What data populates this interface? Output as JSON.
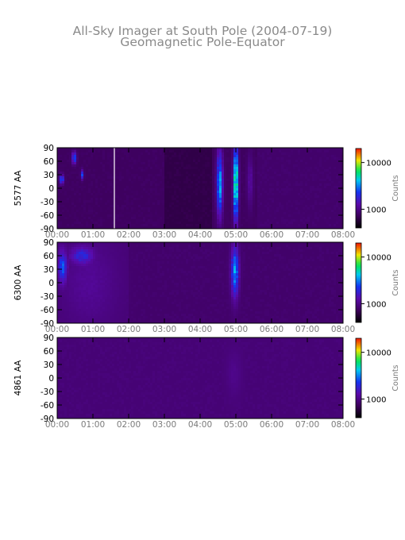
{
  "title": "All-Sky Imager at South Pole (2004-07-19)",
  "subtitle": "Geomagnetic Pole-Equator",
  "chart_data": [
    {
      "type": "heatmap",
      "ylabel": "5577 AA",
      "x_ticks": [
        "00:00",
        "01:00",
        "02:00",
        "03:00",
        "04:00",
        "05:00",
        "06:00",
        "07:00",
        "08:00"
      ],
      "xlim": [
        0,
        8
      ],
      "y_ticks": [
        90,
        60,
        30,
        0,
        -30,
        -60,
        -90
      ],
      "ylim": [
        -90,
        90
      ],
      "colorbar": {
        "label": "Counts",
        "scale": "log",
        "ticks": [
          "10000",
          "1000"
        ],
        "tick_values": [
          10000,
          1000
        ]
      },
      "background": 0.16,
      "gaps": [
        1.6
      ],
      "features": [
        {
          "t": [
            4.45,
            4.65
          ],
          "lat": [
            -60,
            80
          ],
          "peak": 0.58
        },
        {
          "t": [
            4.92,
            5.08
          ],
          "lat": [
            -70,
            90
          ],
          "peak": 0.75
        },
        {
          "t": [
            0.4,
            0.55
          ],
          "lat": [
            55,
            80
          ],
          "peak": 0.5
        },
        {
          "t": [
            0.05,
            0.2
          ],
          "lat": [
            10,
            30
          ],
          "peak": 0.5
        },
        {
          "t": [
            0.65,
            0.75
          ],
          "lat": [
            20,
            40
          ],
          "peak": 0.45
        },
        {
          "t": [
            5.3,
            5.5
          ],
          "lat": [
            -40,
            70
          ],
          "peak": 0.28
        }
      ],
      "dim": [
        {
          "t": [
            3.0,
            4.3
          ],
          "value": 0.12
        },
        {
          "t": [
            5.6,
            7.9
          ],
          "value": 0.18
        }
      ]
    },
    {
      "type": "heatmap",
      "ylabel": "6300 AA",
      "x_ticks": [
        "00:00",
        "01:00",
        "02:00",
        "03:00",
        "04:00",
        "05:00",
        "06:00",
        "07:00",
        "08:00"
      ],
      "xlim": [
        0,
        8
      ],
      "y_ticks": [
        90,
        60,
        30,
        0,
        -30,
        -60,
        -90
      ],
      "ylim": [
        -90,
        90
      ],
      "colorbar": {
        "label": "Counts",
        "scale": "log",
        "ticks": [
          "10000",
          "1000"
        ],
        "tick_values": [
          10000,
          1000
        ]
      },
      "background": 0.2,
      "gaps": [],
      "features": [
        {
          "t": [
            4.85,
            5.1
          ],
          "lat": [
            -30,
            80
          ],
          "peak": 0.55
        },
        {
          "t": [
            0.0,
            0.3
          ],
          "lat": [
            0,
            70
          ],
          "peak": 0.48
        },
        {
          "t": [
            0.3,
            1.1
          ],
          "lat": [
            40,
            80
          ],
          "peak": 0.4
        },
        {
          "t": [
            0.0,
            1.8
          ],
          "lat": [
            -90,
            90
          ],
          "peak": 0.26
        }
      ],
      "dim": [
        {
          "t": [
            2.0,
            8.0
          ],
          "value": 0.18
        }
      ]
    },
    {
      "type": "heatmap",
      "ylabel": "4861 AA",
      "x_ticks": [
        "00:00",
        "01:00",
        "02:00",
        "03:00",
        "04:00",
        "05:00",
        "06:00",
        "07:00",
        "08:00"
      ],
      "xlim": [
        0,
        8
      ],
      "y_ticks": [
        90,
        60,
        30,
        0,
        -30,
        -60,
        -90
      ],
      "ylim": [
        -90,
        90
      ],
      "colorbar": {
        "label": "Counts",
        "scale": "log",
        "ticks": [
          "10000",
          "1000"
        ],
        "tick_values": [
          10000,
          1000
        ]
      },
      "background": 0.2,
      "gaps": [],
      "features": [
        {
          "t": [
            4.7,
            5.2
          ],
          "lat": [
            -40,
            60
          ],
          "peak": 0.24
        }
      ],
      "dim": []
    }
  ]
}
